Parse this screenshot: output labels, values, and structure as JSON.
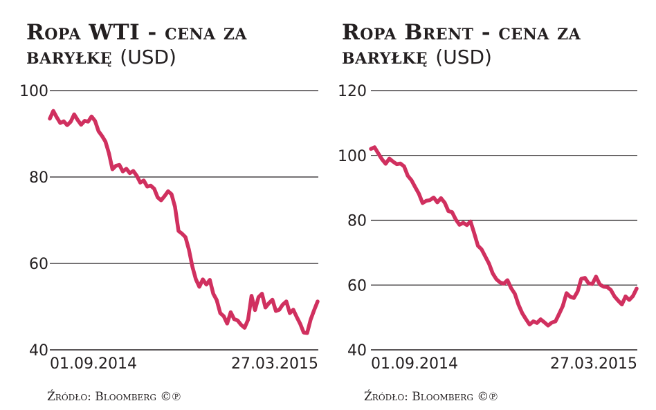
{
  "chart_data": [
    {
      "type": "line",
      "title": "Ropa WTI - cena za baryłkę",
      "unit": "(USD)",
      "ylim": [
        40,
        100
      ],
      "yticks": [
        "100",
        "80",
        "60",
        "40"
      ],
      "x_labels": [
        "01.09.2014",
        "27.03.2015"
      ],
      "line_color": "#d0305f",
      "grid": true,
      "source": "Źródło: Bloomberg ©℗",
      "series": [
        {
          "values": [
            93.5,
            95.3,
            93.8,
            92.5,
            92.9,
            92.0,
            92.8,
            94.5,
            93.2,
            92.1,
            93.0,
            92.8,
            94.0,
            93.0,
            90.6,
            89.5,
            88.2,
            85.5,
            81.8,
            82.6,
            82.8,
            81.3,
            81.9,
            80.9,
            81.4,
            80.3,
            78.7,
            79.2,
            77.8,
            78.0,
            77.3,
            75.3,
            74.6,
            75.6,
            76.7,
            76.0,
            73.1,
            67.5,
            66.9,
            66.1,
            63.2,
            59.2,
            56.3,
            54.6,
            56.3,
            55.1,
            56.2,
            53.0,
            51.5,
            48.5,
            47.8,
            46.1,
            48.7,
            47.1,
            46.8,
            45.8,
            45.1,
            47.0,
            52.5,
            49.2,
            52.2,
            53.0,
            49.8,
            50.8,
            51.6,
            49.0,
            49.3,
            50.5,
            51.2,
            48.5,
            49.3,
            47.6,
            46.0,
            44.0,
            43.9,
            47.0,
            49.2,
            51.2
          ]
        }
      ]
    },
    {
      "type": "line",
      "title": "Ropa Brent - cena za baryłkę",
      "unit": "(USD)",
      "ylim": [
        40,
        120
      ],
      "yticks": [
        "120",
        "100",
        "80",
        "60",
        "40"
      ],
      "x_labels": [
        "01.09.2014",
        "27.03.2015"
      ],
      "line_color": "#d0305f",
      "grid": true,
      "source": "Źródło: Bloomberg ©℗",
      "series": [
        {
          "values": [
            102.0,
            102.5,
            100.6,
            98.8,
            97.4,
            99.0,
            98.1,
            97.3,
            97.5,
            96.6,
            93.7,
            92.3,
            90.2,
            88.2,
            85.3,
            86.0,
            86.2,
            87.0,
            85.5,
            86.8,
            85.4,
            82.8,
            82.5,
            80.2,
            78.6,
            79.2,
            78.5,
            79.6,
            76.0,
            72.1,
            71.0,
            68.8,
            66.6,
            63.6,
            61.8,
            60.8,
            60.4,
            61.5,
            59.0,
            57.3,
            53.9,
            51.3,
            49.5,
            47.8,
            48.8,
            48.3,
            49.4,
            48.5,
            47.5,
            48.4,
            48.8,
            51.1,
            53.5,
            57.5,
            56.4,
            56.0,
            58.0,
            61.9,
            62.2,
            60.5,
            60.3,
            62.6,
            60.2,
            59.5,
            59.4,
            58.5,
            56.5,
            55.2,
            54.0,
            56.5,
            55.4,
            56.6,
            58.9
          ]
        }
      ]
    }
  ]
}
